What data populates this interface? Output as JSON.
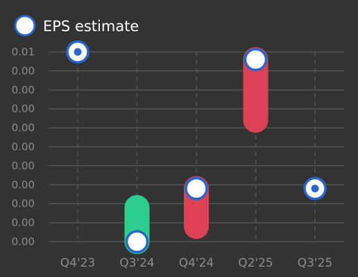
{
  "chart_data": {
    "type": "candlestick-range",
    "title": "",
    "xlabel": "",
    "ylabel": "",
    "legend": {
      "placement": "top-left",
      "entries": [
        "EPS estimate"
      ]
    },
    "categories": [
      "Q4'23",
      "Q3'24",
      "Q4'24",
      "Q2'25",
      "Q3'25"
    ],
    "y_tick_labels": [
      "0.01",
      "0.00",
      "0.00",
      "0.00",
      "0.00",
      "0.00",
      "0.00",
      "0.00",
      "0.00",
      "0.00",
      "0.00"
    ],
    "ylim": [
      0.0,
      0.01
    ],
    "grid": {
      "horizontal": true,
      "vertical": "dashed"
    },
    "series": [
      {
        "name": "EPS estimate",
        "points": [
          {
            "x": "Q4'23",
            "estimate": 0.01,
            "actual": 0.01
          },
          {
            "x": "Q3'24",
            "estimate": 0.0,
            "actual": 0.0018
          },
          {
            "x": "Q4'24",
            "estimate": 0.0028,
            "actual": 0.0008
          },
          {
            "x": "Q2'25",
            "estimate": 0.0096,
            "actual": 0.0064
          },
          {
            "x": "Q3'25",
            "estimate": 0.0028,
            "actual": 0.0028
          }
        ]
      }
    ],
    "colors": {
      "beat": "#2dcc8f",
      "miss": "#dc4156",
      "marker_stroke": "#2866cc",
      "marker_fill": "#ffffff",
      "grid": "#555555",
      "axis_text": "#8c8c8c"
    }
  }
}
